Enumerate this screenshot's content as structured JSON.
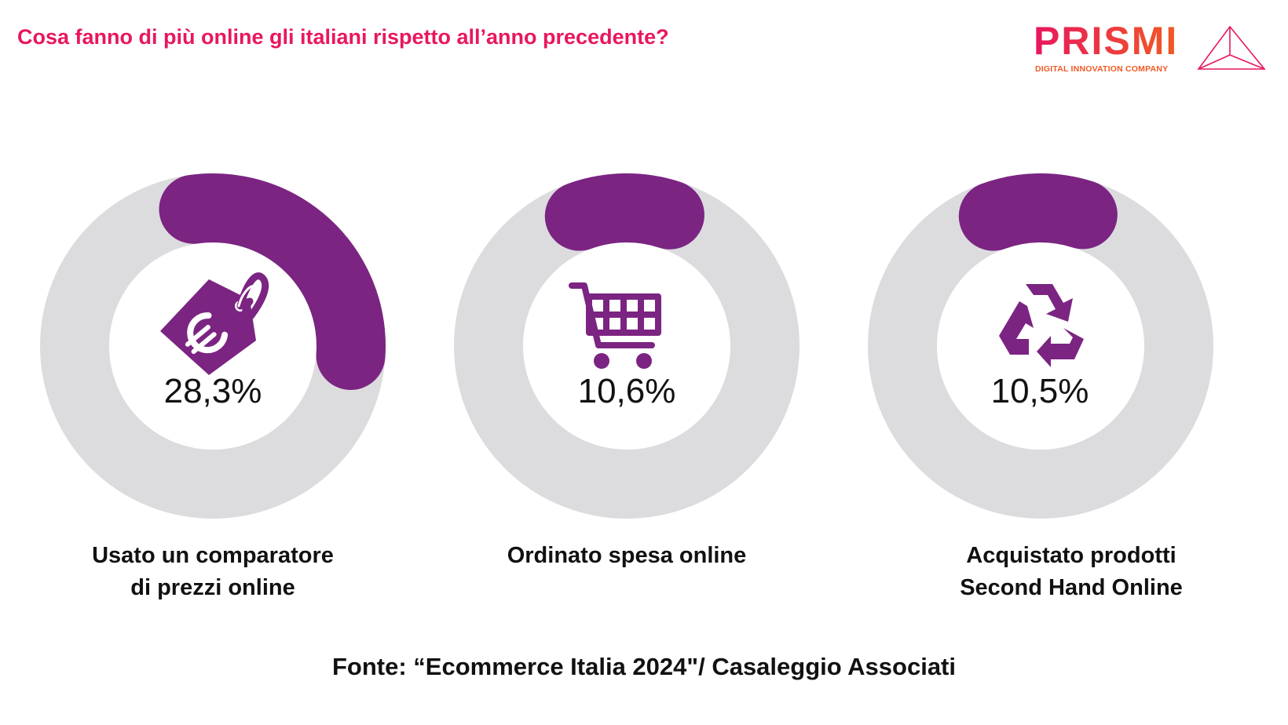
{
  "title": "Cosa fanno di più online gli italiani rispetto all’anno precedente?",
  "logo": {
    "name": "PRISMI",
    "tagline": "DIGITAL INNOVATION COMPANY"
  },
  "colors": {
    "accent": "#7b2482",
    "track": "#dcdcdf",
    "title": "#e8175d",
    "brand_orange": "#f15a24"
  },
  "chart_data": [
    {
      "type": "donut",
      "value": 28.3,
      "value_label": "28,3%",
      "label_line1": "Usato un comparatore",
      "label_line2": "di prezzi online",
      "icon": "euro-price-tag-icon"
    },
    {
      "type": "donut",
      "value": 10.6,
      "value_label": "10,6%",
      "label_line1": "Ordinato spesa online",
      "label_line2": "",
      "icon": "shopping-cart-icon"
    },
    {
      "type": "donut",
      "value": 10.5,
      "value_label": "10,5%",
      "label_line1": "Acquistato prodotti",
      "label_line2": "Second Hand Online",
      "icon": "recycle-icon"
    }
  ],
  "source": "Fonte: “Ecommerce Italia 2024\"/ Casaleggio Associati"
}
